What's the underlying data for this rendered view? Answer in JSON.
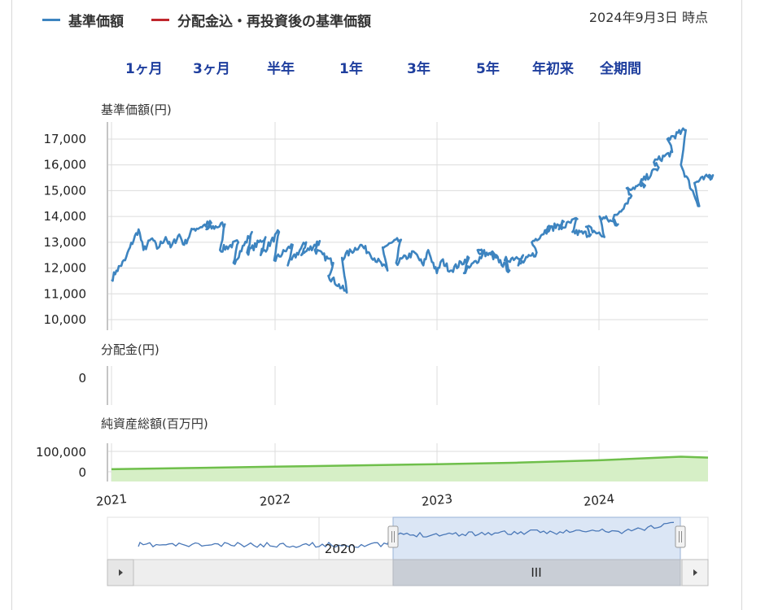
{
  "legend": {
    "nav_label": "基準価額",
    "nav_color": "#3d84c0",
    "reinvest_label": "分配金込・再投資後の基準価額",
    "reinvest_color": "#c0272d"
  },
  "as_of": "2024年9月3日 時点",
  "ranges": [
    "1ヶ月",
    "3ヶ月",
    "半年",
    "1年",
    "3年",
    "5年",
    "年初来",
    "全期間"
  ],
  "chart_data": [
    {
      "type": "line",
      "ylabel": "基準価額(円)",
      "yticks": [
        "10,000",
        "11,000",
        "12,000",
        "13,000",
        "14,000",
        "15,000",
        "16,000",
        "17,000"
      ],
      "ylim": [
        10000,
        17000
      ],
      "xlim": [
        "2021-01",
        "2024-09"
      ],
      "series": [
        {
          "values": [
            [
              "2021-01",
              11550
            ],
            [
              "2021-01",
              11900
            ],
            [
              "2021-02",
              12300
            ],
            [
              "2021-02",
              12800
            ],
            [
              "2021-03",
              13500
            ],
            [
              "2021-03",
              12700
            ],
            [
              "2021-04",
              13150
            ],
            [
              "2021-04",
              12750
            ],
            [
              "2021-05",
              13200
            ],
            [
              "2021-05",
              12800
            ],
            [
              "2021-06",
              13300
            ],
            [
              "2021-06",
              12900
            ],
            [
              "2021-07",
              13500
            ],
            [
              "2021-08",
              13750
            ],
            [
              "2021-08",
              13500
            ],
            [
              "2021-09",
              13700
            ],
            [
              "2021-09",
              12700
            ],
            [
              "2021-10",
              13000
            ],
            [
              "2021-10",
              12200
            ],
            [
              "2021-11",
              13400
            ],
            [
              "2021-11",
              12600
            ],
            [
              "2021-12",
              13200
            ],
            [
              "2021-12",
              12500
            ],
            [
              "2022-01",
              13400
            ],
            [
              "2022-01",
              12300
            ],
            [
              "2022-02",
              12900
            ],
            [
              "2022-02",
              12100
            ],
            [
              "2022-03",
              13000
            ],
            [
              "2022-03",
              12500
            ],
            [
              "2022-04",
              13050
            ],
            [
              "2022-04",
              12700
            ],
            [
              "2022-05",
              12200
            ],
            [
              "2022-05",
              11700
            ],
            [
              "2022-06",
              11050
            ],
            [
              "2022-06",
              12400
            ],
            [
              "2022-07",
              12900
            ],
            [
              "2022-08",
              12600
            ],
            [
              "2022-09",
              11900
            ],
            [
              "2022-09",
              12800
            ],
            [
              "2022-10",
              13100
            ],
            [
              "2022-10",
              12200
            ],
            [
              "2022-11",
              12600
            ],
            [
              "2022-12",
              12100
            ],
            [
              "2022-12",
              12700
            ],
            [
              "2023-01",
              11800
            ],
            [
              "2023-01",
              12300
            ],
            [
              "2023-02",
              11900
            ],
            [
              "2023-03",
              12400
            ],
            [
              "2023-03",
              11800
            ],
            [
              "2023-04",
              12500
            ],
            [
              "2023-04",
              12700
            ],
            [
              "2023-05",
              12400
            ],
            [
              "2023-05",
              12600
            ],
            [
              "2023-06",
              11900
            ],
            [
              "2023-06",
              12300
            ],
            [
              "2023-07",
              12500
            ],
            [
              "2023-07",
              12100
            ],
            [
              "2023-08",
              12600
            ],
            [
              "2023-08",
              13000
            ],
            [
              "2023-09",
              13600
            ],
            [
              "2023-09",
              13400
            ],
            [
              "2023-10",
              13800
            ],
            [
              "2023-10",
              13500
            ],
            [
              "2023-11",
              13900
            ],
            [
              "2023-11",
              13400
            ],
            [
              "2023-12",
              13300
            ],
            [
              "2023-12",
              13600
            ],
            [
              "2024-01",
              13200
            ],
            [
              "2024-01",
              14000
            ],
            [
              "2024-02",
              13700
            ],
            [
              "2024-02",
              13900
            ],
            [
              "2024-03",
              14800
            ],
            [
              "2024-03",
              15100
            ],
            [
              "2024-04",
              15200
            ],
            [
              "2024-04",
              15300
            ],
            [
              "2024-05",
              15900
            ],
            [
              "2024-05",
              16100
            ],
            [
              "2024-06",
              16500
            ],
            [
              "2024-06",
              17000
            ],
            [
              "2024-07",
              17350
            ],
            [
              "2024-07",
              16000
            ],
            [
              "2024-08",
              14400
            ],
            [
              "2024-08",
              15300
            ],
            [
              "2024-09",
              15600
            ],
            [
              "2024-09",
              15500
            ]
          ]
        }
      ]
    },
    {
      "type": "bar",
      "ylabel": "分配金(円)",
      "yticks": [
        "0"
      ],
      "values": []
    },
    {
      "type": "area",
      "ylabel": "純資産総額(百万円)",
      "yticks": [
        "0",
        "100,000"
      ],
      "x": [
        "2021-01",
        "2021-07",
        "2022-01",
        "2022-07",
        "2023-01",
        "2023-07",
        "2024-01",
        "2024-07",
        "2024-09"
      ],
      "values": [
        5000,
        12000,
        19000,
        26000,
        33000,
        42000,
        55000,
        75000,
        70000
      ],
      "color": "#6fbf4b",
      "fill": "#d6efc6"
    }
  ],
  "xaxis_labels": [
    "2021",
    "2022",
    "2023",
    "2024"
  ],
  "navigator": {
    "label": "2020",
    "grip": "III"
  }
}
